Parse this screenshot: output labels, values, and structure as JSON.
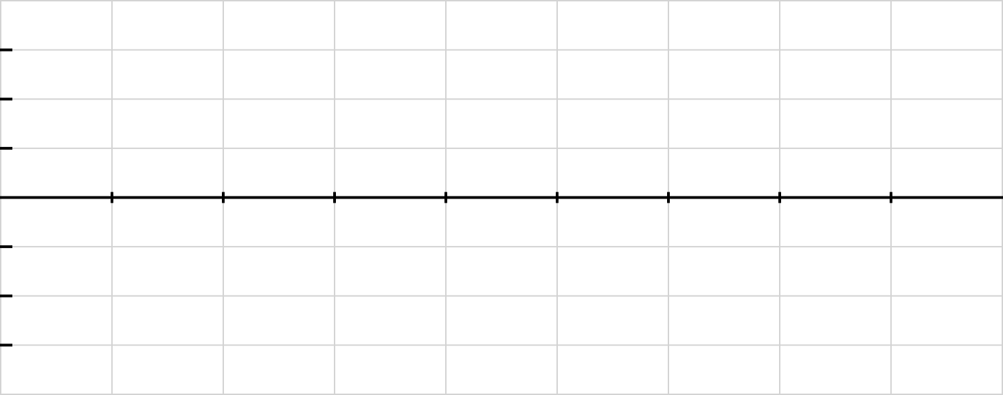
{
  "chart_data": {
    "type": "line",
    "title": "",
    "xlabel": "",
    "ylabel": "",
    "xlim": [
      0,
      9
    ],
    "ylim": [
      -4,
      4
    ],
    "x_grid_values": [
      1,
      2,
      3,
      4,
      5,
      6,
      7,
      8
    ],
    "y_grid_values": [
      -3,
      -2,
      -1,
      1,
      2,
      3
    ],
    "x_axis_at_y": 0,
    "x_ticks": [
      1,
      2,
      3,
      4,
      5,
      6,
      7,
      8
    ],
    "y_ticks": [
      -3,
      -2,
      -1,
      1,
      2,
      3
    ],
    "grid": true,
    "series": [],
    "colors": {
      "grid": "#d3d3d3",
      "axis": "#000000",
      "background": "#ffffff"
    }
  }
}
